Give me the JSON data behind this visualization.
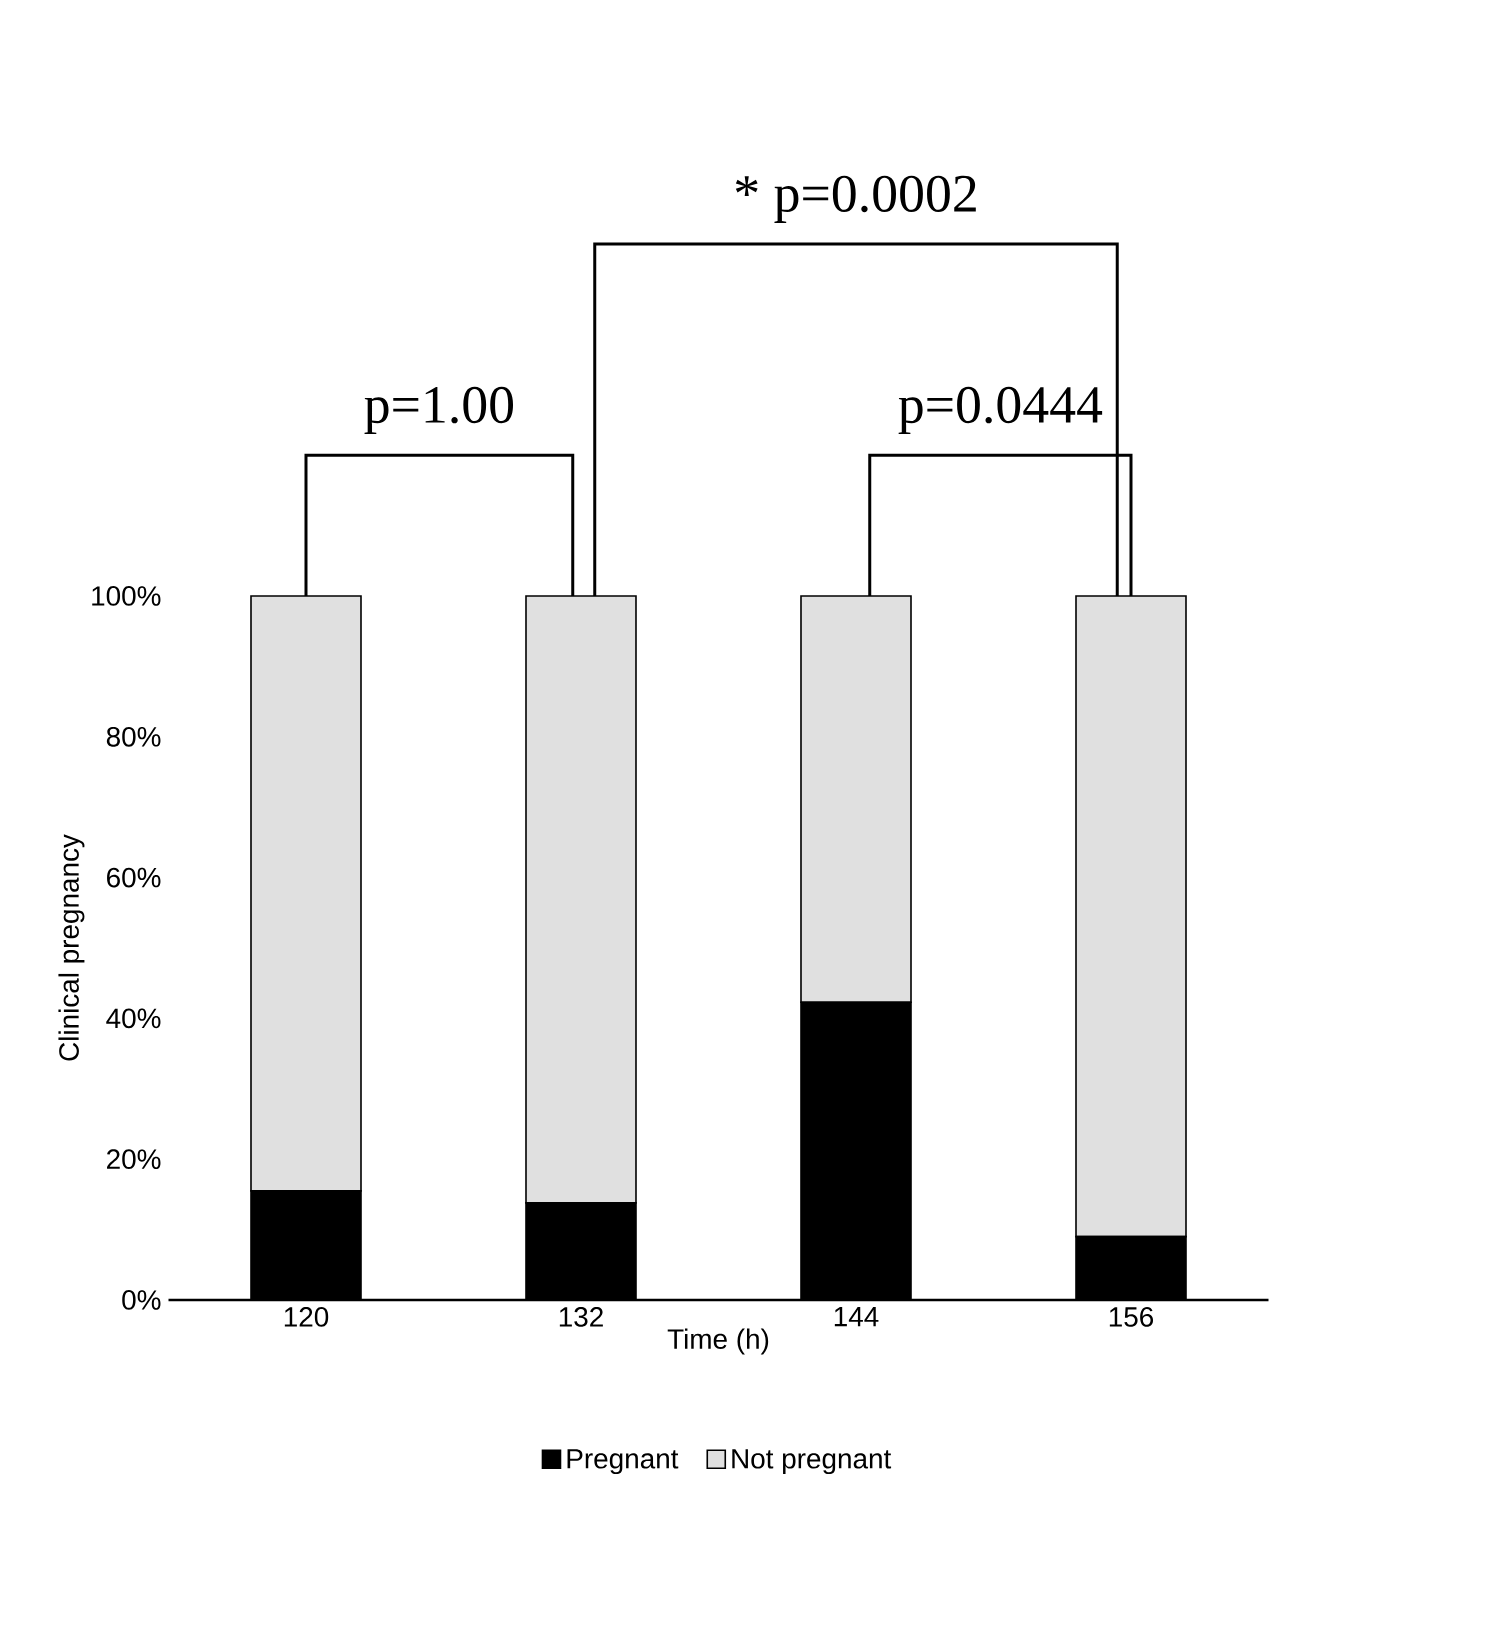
{
  "chart_data": {
    "type": "bar",
    "stacked": true,
    "xlabel": "Time (h)",
    "ylabel": "Clinical pregnancy",
    "categories": [
      "120",
      "132",
      "144",
      "156"
    ],
    "series": [
      {
        "name": "Pregnant",
        "color": "#000000",
        "values": [
          15.5,
          13.8,
          42.3,
          9.0
        ]
      },
      {
        "name": "Not pregnant",
        "color": "#e0e0e0",
        "values": [
          84.5,
          86.2,
          57.7,
          91.0
        ]
      }
    ],
    "ylim": [
      0,
      100
    ],
    "yticks": [
      {
        "value": 0,
        "label": "0%"
      },
      {
        "value": 20,
        "label": "20%"
      },
      {
        "value": 40,
        "label": "40%"
      },
      {
        "value": 60,
        "label": "60%"
      },
      {
        "value": 80,
        "label": "80%"
      },
      {
        "value": 100,
        "label": "100%"
      }
    ],
    "annotations": [
      "p=1.00",
      "* p=0.0002",
      "p=0.0444"
    ],
    "legend": "bottom"
  }
}
